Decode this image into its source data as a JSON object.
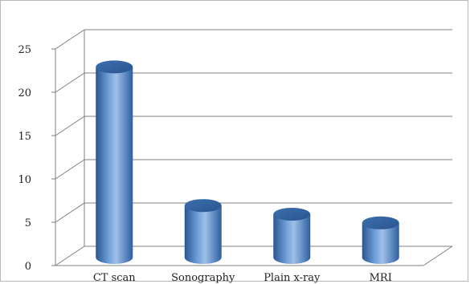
{
  "chart_data": {
    "type": "bar",
    "title": "",
    "xlabel": "",
    "ylabel": "",
    "categories": [
      "CT scan",
      "Sonography",
      "Plain x-ray",
      "MRI"
    ],
    "values": [
      22,
      6,
      5,
      4
    ],
    "ylim": [
      0,
      25
    ],
    "yticks": [
      "0",
      "5",
      "10",
      "15",
      "20",
      "25"
    ],
    "grid": true,
    "legend": "none",
    "style": "3d-cylinder",
    "colors": {
      "bar": "#4a7ebb",
      "bar_dark": "#2a5591",
      "bar_light": "#9ec0ea",
      "grid": "#7f7f7f",
      "wall": "#ffffff"
    }
  }
}
